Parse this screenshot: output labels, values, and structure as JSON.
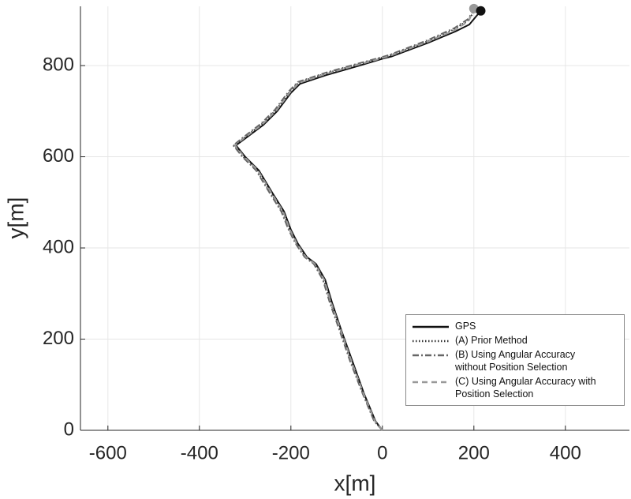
{
  "chart_data": {
    "type": "line",
    "xlabel": "x[m]",
    "ylabel": "y[m]",
    "xlim": [
      -660,
      540
    ],
    "ylim": [
      0,
      930
    ],
    "xticks": [
      -600,
      -400,
      -200,
      0,
      200,
      400
    ],
    "yticks": [
      0,
      200,
      400,
      600,
      800
    ],
    "grid": true,
    "legend": "lower right",
    "series": [
      {
        "name": "GPS",
        "color": "#111111",
        "dash": "solid",
        "x": [
          0,
          -15,
          -40,
          -65,
          -90,
          -110,
          -125,
          -145,
          -165,
          -185,
          -200,
          -215,
          -240,
          -270,
          -300,
          -320,
          -300,
          -260,
          -230,
          -200,
          -180,
          -120,
          -50,
          0,
          20,
          100,
          160,
          190,
          215
        ],
        "y": [
          0,
          20,
          80,
          150,
          220,
          280,
          330,
          365,
          380,
          410,
          440,
          480,
          520,
          570,
          600,
          625,
          640,
          670,
          700,
          740,
          760,
          780,
          800,
          815,
          820,
          850,
          875,
          890,
          920
        ]
      },
      {
        "name": "(A) Prior Method",
        "color": "#333333",
        "dash": "dotted",
        "x": [
          0,
          -17,
          -42,
          -68,
          -92,
          -113,
          -128,
          -148,
          -168,
          -188,
          -203,
          -219,
          -244,
          -274,
          -304,
          -324,
          -303,
          -263,
          -233,
          -203,
          -183,
          -123,
          -53,
          -2,
          18,
          98,
          158,
          188,
          205
        ],
        "y": [
          0,
          20,
          80,
          150,
          220,
          280,
          330,
          365,
          380,
          410,
          440,
          480,
          520,
          570,
          600,
          625,
          641,
          672,
          702,
          742,
          763,
          783,
          803,
          817,
          823,
          853,
          880,
          900,
          925
        ]
      },
      {
        "name": "(B) Using Angular Accuracy without Position Selection",
        "color": "#666666",
        "dash": "dashdot",
        "x": [
          0,
          -18,
          -43,
          -70,
          -94,
          -115,
          -130,
          -150,
          -170,
          -190,
          -205,
          -221,
          -246,
          -276,
          -306,
          -326,
          -305,
          -265,
          -235,
          -205,
          -185,
          -125,
          -55,
          -3,
          17,
          97,
          157,
          187,
          203
        ],
        "y": [
          0,
          20,
          80,
          150,
          220,
          280,
          330,
          365,
          380,
          410,
          440,
          480,
          520,
          570,
          600,
          625,
          642,
          673,
          703,
          743,
          764,
          784,
          804,
          818,
          824,
          855,
          882,
          902,
          926
        ]
      },
      {
        "name": "(C) Using Angular Accuracy with Position Selection",
        "color": "#999999",
        "dash": "dashed",
        "x": [
          0,
          -16,
          -41,
          -67,
          -91,
          -112,
          -127,
          -147,
          -167,
          -187,
          -202,
          -217,
          -242,
          -272,
          -302,
          -322,
          -302,
          -262,
          -232,
          -202,
          -182,
          -122,
          -52,
          -1,
          19,
          99,
          159,
          189,
          200
        ],
        "y": [
          0,
          20,
          80,
          150,
          220,
          280,
          330,
          365,
          380,
          410,
          440,
          480,
          520,
          570,
          600,
          625,
          641,
          671,
          701,
          741,
          762,
          782,
          802,
          816,
          822,
          852,
          878,
          898,
          925
        ]
      }
    ]
  }
}
